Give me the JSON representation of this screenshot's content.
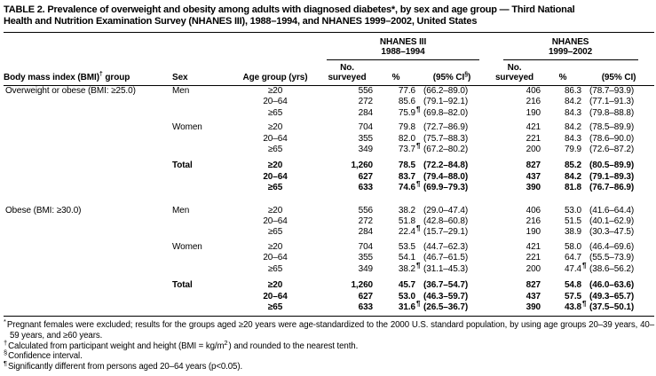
{
  "title": {
    "line1": "TABLE 2. Prevalence of overweight and obesity among adults with diagnosed diabetes*, by sex and age group — Third National",
    "line2": "Health and Nutrition Examination Survey (NHANES III), 1988–1994, and NHANES 1999–2002, United States"
  },
  "table": {
    "groups": [
      {
        "line1": "NHANES III",
        "line2": "1988–1994"
      },
      {
        "line1": "NHANES",
        "line2": "1999–2002"
      }
    ],
    "columns": {
      "bmi_pre": "Body mass index (BMI)",
      "bmi_sup": "†",
      "bmi_post": " group",
      "sex": "Sex",
      "age": "Age group (yrs)",
      "no_line1": "No.",
      "no_line2": "surveyed",
      "pct": "%",
      "ci1_pre": "(95% CI",
      "ci1_sup": "§",
      "ci1_post": ")",
      "ci2": "(95% CI)"
    },
    "rows": [
      {
        "bmi": "Overweight or obese (BMI: ≥25.0)",
        "sex": "Men",
        "age": "≥20",
        "n1": "556",
        "p1": "77.6",
        "s1": "",
        "ci1": "(66.2–89.0)",
        "n2": "406",
        "p2": "86.3",
        "s2": "",
        "ci2": "(78.7–93.9)"
      },
      {
        "bmi": "",
        "sex": "",
        "age": "20–64",
        "n1": "272",
        "p1": "85.6",
        "s1": "",
        "ci1": "(79.1–92.1)",
        "n2": "216",
        "p2": "84.2",
        "s2": "",
        "ci2": "(77.1–91.3)"
      },
      {
        "bmi": "",
        "sex": "",
        "age": "≥65",
        "n1": "284",
        "p1": "75.9",
        "s1": "¶",
        "ci1": "(69.8–82.0)",
        "n2": "190",
        "p2": "84.3",
        "s2": "",
        "ci2": "(79.8–88.8)"
      },
      {
        "bmi": "",
        "sex": "Women",
        "age": "≥20",
        "n1": "704",
        "p1": "79.8",
        "s1": "",
        "ci1": "(72.7–86.9)",
        "n2": "421",
        "p2": "84.2",
        "s2": "",
        "ci2": "(78.5–89.9)"
      },
      {
        "bmi": "",
        "sex": "",
        "age": "20–64",
        "n1": "355",
        "p1": "82.0",
        "s1": "",
        "ci1": "(75.7–88.3)",
        "n2": "221",
        "p2": "84.3",
        "s2": "",
        "ci2": "(78.6–90.0)"
      },
      {
        "bmi": "",
        "sex": "",
        "age": "≥65",
        "n1": "349",
        "p1": "73.7",
        "s1": "¶",
        "ci1": "(67.2–80.2)",
        "n2": "200",
        "p2": "79.9",
        "s2": "",
        "ci2": "(72.6–87.2)"
      },
      {
        "bmi": "",
        "sex": "Total",
        "age": "≥20",
        "n1": "1,260",
        "p1": "78.5",
        "s1": "",
        "ci1": "(72.2–84.8)",
        "n2": "827",
        "p2": "85.2",
        "s2": "",
        "ci2": "(80.5–89.9)"
      },
      {
        "bmi": "",
        "sex": "",
        "age": "20–64",
        "n1": "627",
        "p1": "83.7",
        "s1": "",
        "ci1": "(79.4–88.0)",
        "n2": "437",
        "p2": "84.2",
        "s2": "",
        "ci2": "(79.1–89.3)"
      },
      {
        "bmi": "",
        "sex": "",
        "age": "≥65",
        "n1": "633",
        "p1": "74.6",
        "s1": "¶",
        "ci1": "(69.9–79.3)",
        "n2": "390",
        "p2": "81.8",
        "s2": "",
        "ci2": "(76.7–86.9)"
      },
      {
        "bmi": "Obese (BMI: ≥30.0)",
        "sex": "Men",
        "age": "≥20",
        "n1": "556",
        "p1": "38.2",
        "s1": "",
        "ci1": "(29.0–47.4)",
        "n2": "406",
        "p2": "53.0",
        "s2": "",
        "ci2": "(41.6–64.4)"
      },
      {
        "bmi": "",
        "sex": "",
        "age": "20–64",
        "n1": "272",
        "p1": "51.8",
        "s1": "",
        "ci1": "(42.8–60.8)",
        "n2": "216",
        "p2": "51.5",
        "s2": "",
        "ci2": "(40.1–62.9)"
      },
      {
        "bmi": "",
        "sex": "",
        "age": "≥65",
        "n1": "284",
        "p1": "22.4",
        "s1": "¶",
        "ci1": "(15.7–29.1)",
        "n2": "190",
        "p2": "38.9",
        "s2": "",
        "ci2": "(30.3–47.5)"
      },
      {
        "bmi": "",
        "sex": "Women",
        "age": "≥20",
        "n1": "704",
        "p1": "53.5",
        "s1": "",
        "ci1": "(44.7–62.3)",
        "n2": "421",
        "p2": "58.0",
        "s2": "",
        "ci2": "(46.4–69.6)"
      },
      {
        "bmi": "",
        "sex": "",
        "age": "20–64",
        "n1": "355",
        "p1": "54.1",
        "s1": "",
        "ci1": "(46.7–61.5)",
        "n2": "221",
        "p2": "64.7",
        "s2": "",
        "ci2": "(55.5–73.9)"
      },
      {
        "bmi": "",
        "sex": "",
        "age": "≥65",
        "n1": "349",
        "p1": "38.2",
        "s1": "¶",
        "ci1": "(31.1–45.3)",
        "n2": "200",
        "p2": "47.4",
        "s2": "¶",
        "ci2": "(38.6–56.2)"
      },
      {
        "bmi": "",
        "sex": "Total",
        "age": "≥20",
        "n1": "1,260",
        "p1": "45.7",
        "s1": "",
        "ci1": "(36.7–54.7)",
        "n2": "827",
        "p2": "54.8",
        "s2": "",
        "ci2": "(46.0–63.6)"
      },
      {
        "bmi": "",
        "sex": "",
        "age": "20–64",
        "n1": "627",
        "p1": "53.0",
        "s1": "",
        "ci1": "(46.3–59.7)",
        "n2": "437",
        "p2": "57.5",
        "s2": "",
        "ci2": "(49.3–65.7)"
      },
      {
        "bmi": "",
        "sex": "",
        "age": "≥65",
        "n1": "633",
        "p1": "31.6",
        "s1": "¶",
        "ci1": "(26.5–36.7)",
        "n2": "390",
        "p2": "43.8",
        "s2": "¶",
        "ci2": "(37.5–50.1)"
      }
    ]
  },
  "footnotes": [
    {
      "marker": "*",
      "pre": "Pregnant females were excluded; results for the groups aged ≥20 years were age-standardized to the 2000 U.S. standard population, by using age groups 20–39 years, 40–59 years, and ≥60 years.",
      "sup": "",
      "post": ""
    },
    {
      "marker": "†",
      "pre": "Calculated from participant weight and height (BMI = kg/m",
      "sup": "2",
      "post": ") and rounded to the nearest tenth."
    },
    {
      "marker": "§",
      "pre": "Confidence interval.",
      "sup": "",
      "post": ""
    },
    {
      "marker": "¶",
      "pre": "Significantly different from persons aged 20–64 years (p<0.05).",
      "sup": "",
      "post": ""
    }
  ]
}
